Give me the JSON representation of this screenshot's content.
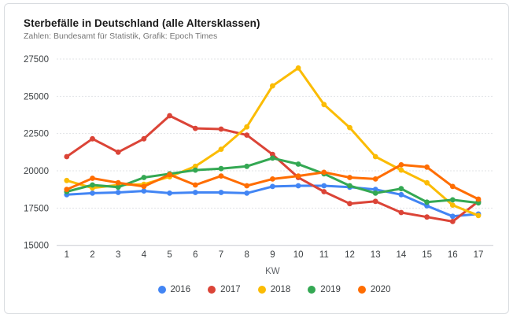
{
  "header": {
    "title": "Sterbefälle in Deutschland (alle Altersklassen)",
    "subtitle": "Zahlen: Bundesamt für Statistik, Grafik: Epoch Times"
  },
  "chart_data": {
    "type": "line",
    "title": "Sterbefälle in Deutschland (alle Altersklassen)",
    "xlabel": "KW",
    "ylabel": "",
    "x": [
      1,
      2,
      3,
      4,
      5,
      6,
      7,
      8,
      9,
      10,
      11,
      12,
      13,
      14,
      15,
      16,
      17
    ],
    "ylim": [
      15000,
      27500
    ],
    "yticks": [
      15000,
      17500,
      20000,
      22500,
      25000,
      27500
    ],
    "grid": "horizontal-dashed",
    "legend_position": "bottom",
    "series": [
      {
        "name": "2016",
        "color": "#4285F4",
        "values": [
          18400,
          18500,
          18550,
          18650,
          18500,
          18550,
          18550,
          18500,
          18950,
          19000,
          19000,
          18900,
          18750,
          18400,
          17650,
          16950,
          17100
        ]
      },
      {
        "name": "2017",
        "color": "#DB4437",
        "values": [
          20950,
          22150,
          21250,
          22150,
          23700,
          22850,
          22800,
          22400,
          21100,
          19550,
          18600,
          17800,
          17950,
          17200,
          16900,
          16600,
          17950
        ]
      },
      {
        "name": "2018",
        "color": "#FBBC04",
        "values": [
          19350,
          18850,
          19050,
          19100,
          19600,
          20300,
          21450,
          22950,
          25700,
          26900,
          24450,
          22900,
          20950,
          20050,
          19200,
          17700,
          17000
        ]
      },
      {
        "name": "2019",
        "color": "#34A853",
        "values": [
          18600,
          19050,
          18900,
          19550,
          19800,
          20050,
          20150,
          20300,
          20850,
          20450,
          19800,
          19000,
          18500,
          18800,
          17900,
          18050,
          17850
        ]
      },
      {
        "name": "2020",
        "color": "#FF6D01",
        "values": [
          18750,
          19500,
          19200,
          18950,
          19750,
          19050,
          19650,
          19000,
          19450,
          19650,
          19900,
          19550,
          19450,
          20400,
          20250,
          18950,
          18100
        ]
      }
    ]
  }
}
